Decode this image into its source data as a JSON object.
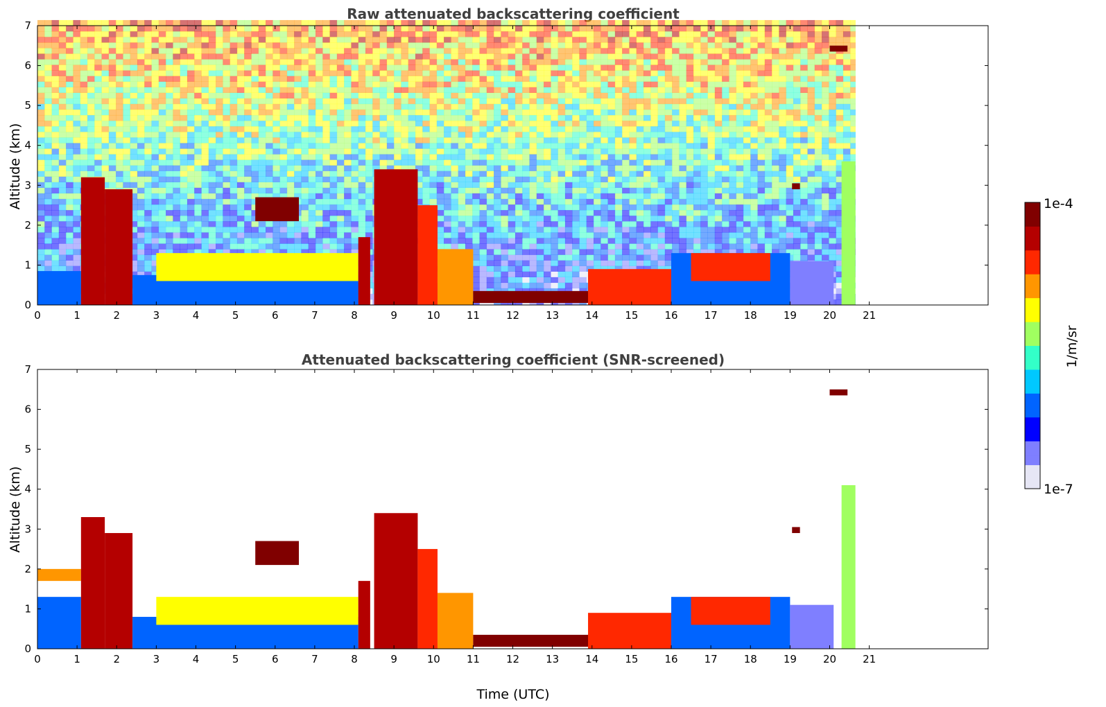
{
  "chart_data": [
    {
      "type": "heatmap",
      "title": "Raw attenuated backscattering coefficient",
      "xlabel": "",
      "ylabel": "Altitude (km)",
      "xlim": [
        0,
        24
      ],
      "ylim": [
        0,
        7
      ],
      "xticks": [
        "0",
        "1",
        "2",
        "3",
        "4",
        "5",
        "6",
        "7",
        "8",
        "9",
        "10",
        "11",
        "12",
        "13",
        "14",
        "15",
        "16",
        "17",
        "18",
        "19",
        "20",
        "21"
      ],
      "yticks": [
        "0",
        "1",
        "2",
        "3",
        "4",
        "5",
        "6",
        "7"
      ],
      "data_end_time": 20.65,
      "noise_background": true,
      "features": [
        {
          "t0": 0.0,
          "t1": 1.1,
          "z0": 0.0,
          "z1": 0.85,
          "level": 0.25
        },
        {
          "t0": 1.1,
          "t1": 1.7,
          "z0": 0.0,
          "z1": 3.2,
          "level": 0.85
        },
        {
          "t0": 1.7,
          "t1": 2.4,
          "z0": 0.0,
          "z1": 2.9,
          "level": 0.9
        },
        {
          "t0": 2.4,
          "t1": 8.1,
          "z0": 0.0,
          "z1": 0.75,
          "level": 0.3
        },
        {
          "t0": 3.0,
          "t1": 8.1,
          "z0": 0.6,
          "z1": 1.3,
          "level": 0.6
        },
        {
          "t0": 5.5,
          "t1": 6.6,
          "z0": 2.1,
          "z1": 2.7,
          "level": 0.92
        },
        {
          "t0": 8.1,
          "t1": 8.4,
          "z0": 0.0,
          "z1": 1.7,
          "level": 0.88
        },
        {
          "t0": 8.5,
          "t1": 9.6,
          "z0": 0.0,
          "z1": 3.4,
          "level": 0.85
        },
        {
          "t0": 9.6,
          "t1": 10.1,
          "z0": 0.0,
          "z1": 2.5,
          "level": 0.75
        },
        {
          "t0": 10.1,
          "t1": 11.0,
          "z0": 0.0,
          "z1": 1.4,
          "level": 0.7
        },
        {
          "t0": 11.0,
          "t1": 14.0,
          "z0": 0.05,
          "z1": 0.35,
          "level": 0.95
        },
        {
          "t0": 13.9,
          "t1": 16.0,
          "z0": 0.0,
          "z1": 0.9,
          "level": 0.75
        },
        {
          "t0": 16.0,
          "t1": 19.0,
          "z0": 0.0,
          "z1": 1.3,
          "level": 0.3
        },
        {
          "t0": 16.5,
          "t1": 18.5,
          "z0": 0.6,
          "z1": 1.3,
          "level": 0.8
        },
        {
          "t0": 19.0,
          "t1": 20.1,
          "z0": 0.0,
          "z1": 1.1,
          "level": 0.12
        },
        {
          "t0": 19.05,
          "t1": 19.25,
          "z0": 2.9,
          "z1": 3.05,
          "level": 0.95
        },
        {
          "t0": 20.0,
          "t1": 20.45,
          "z0": 6.35,
          "z1": 6.5,
          "level": 0.95
        },
        {
          "t0": 20.3,
          "t1": 20.65,
          "z0": 0.0,
          "z1": 3.6,
          "level": 0.55
        }
      ]
    },
    {
      "type": "heatmap",
      "title": "Attenuated backscattering coefficient (SNR-screened)",
      "xlabel": "Time (UTC)",
      "ylabel": "Altitude (km)",
      "xlim": [
        0,
        24
      ],
      "ylim": [
        0,
        7
      ],
      "xticks": [
        "0",
        "1",
        "2",
        "3",
        "4",
        "5",
        "6",
        "7",
        "8",
        "9",
        "10",
        "11",
        "12",
        "13",
        "14",
        "15",
        "16",
        "17",
        "18",
        "19",
        "20",
        "21"
      ],
      "yticks": [
        "0",
        "1",
        "2",
        "3",
        "4",
        "5",
        "6",
        "7"
      ],
      "data_end_time": 20.65,
      "noise_background": false,
      "features": [
        {
          "t0": 0.0,
          "t1": 1.1,
          "z0": 0.0,
          "z1": 1.3,
          "level": 0.25
        },
        {
          "t0": 0.0,
          "t1": 1.1,
          "z0": 1.7,
          "z1": 2.0,
          "level": 0.7
        },
        {
          "t0": 1.1,
          "t1": 1.7,
          "z0": 0.0,
          "z1": 3.3,
          "level": 0.85
        },
        {
          "t0": 1.7,
          "t1": 2.4,
          "z0": 0.0,
          "z1": 2.9,
          "level": 0.9
        },
        {
          "t0": 2.4,
          "t1": 8.1,
          "z0": 0.0,
          "z1": 0.8,
          "level": 0.3
        },
        {
          "t0": 3.0,
          "t1": 8.1,
          "z0": 0.6,
          "z1": 1.3,
          "level": 0.6
        },
        {
          "t0": 5.5,
          "t1": 6.6,
          "z0": 2.1,
          "z1": 2.7,
          "level": 0.92
        },
        {
          "t0": 8.1,
          "t1": 8.4,
          "z0": 0.0,
          "z1": 1.7,
          "level": 0.88
        },
        {
          "t0": 8.5,
          "t1": 9.6,
          "z0": 0.0,
          "z1": 3.4,
          "level": 0.85
        },
        {
          "t0": 9.6,
          "t1": 10.1,
          "z0": 0.0,
          "z1": 2.5,
          "level": 0.75
        },
        {
          "t0": 10.1,
          "t1": 11.0,
          "z0": 0.0,
          "z1": 1.4,
          "level": 0.7
        },
        {
          "t0": 11.0,
          "t1": 14.0,
          "z0": 0.05,
          "z1": 0.35,
          "level": 0.95
        },
        {
          "t0": 13.9,
          "t1": 16.0,
          "z0": 0.0,
          "z1": 0.9,
          "level": 0.75
        },
        {
          "t0": 16.0,
          "t1": 19.0,
          "z0": 0.0,
          "z1": 1.3,
          "level": 0.3
        },
        {
          "t0": 16.5,
          "t1": 18.5,
          "z0": 0.6,
          "z1": 1.3,
          "level": 0.8
        },
        {
          "t0": 19.0,
          "t1": 20.1,
          "z0": 0.0,
          "z1": 1.1,
          "level": 0.12
        },
        {
          "t0": 19.05,
          "t1": 19.25,
          "z0": 2.9,
          "z1": 3.05,
          "level": 0.95
        },
        {
          "t0": 20.0,
          "t1": 20.45,
          "z0": 6.35,
          "z1": 6.5,
          "level": 0.95
        },
        {
          "t0": 20.3,
          "t1": 20.65,
          "z0": 0.0,
          "z1": 4.1,
          "level": 0.55
        }
      ]
    }
  ],
  "colorbar": {
    "max_label": "1e-4",
    "min_label": "1e-7",
    "unit_label": "1/m/sr",
    "colormap": [
      "#e6e6f5",
      "#7f7fff",
      "#0000ff",
      "#0064ff",
      "#00c8ff",
      "#33ffc8",
      "#a0ff60",
      "#ffff00",
      "#ff9600",
      "#ff2800",
      "#b40000",
      "#800000"
    ]
  }
}
